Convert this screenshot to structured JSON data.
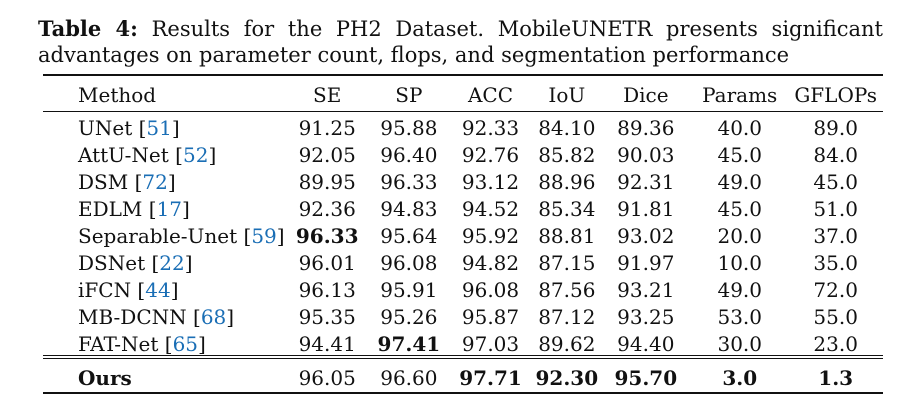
{
  "caption": {
    "label": "Table 4:",
    "text": "Results for the PH2 Dataset. MobileUNETR presents significant advantages on parameter count, flops, and segmentation performance"
  },
  "table": {
    "headers": [
      "Method",
      "SE",
      "SP",
      "ACC",
      "IoU",
      "Dice",
      "Params",
      "GFLOPs"
    ],
    "rows": [
      {
        "method": "UNet",
        "ref": "51",
        "values": [
          "91.25",
          "95.88",
          "92.33",
          "84.10",
          "89.36",
          "40.0",
          "89.0"
        ],
        "bold": []
      },
      {
        "method": "AttU-Net",
        "ref": "52",
        "values": [
          "92.05",
          "96.40",
          "92.76",
          "85.82",
          "90.03",
          "45.0",
          "84.0"
        ],
        "bold": []
      },
      {
        "method": "DSM",
        "ref": "72",
        "values": [
          "89.95",
          "96.33",
          "93.12",
          "88.96",
          "92.31",
          "49.0",
          "45.0"
        ],
        "bold": []
      },
      {
        "method": "EDLM",
        "ref": "17",
        "values": [
          "92.36",
          "94.83",
          "94.52",
          "85.34",
          "91.81",
          "45.0",
          "51.0"
        ],
        "bold": []
      },
      {
        "method": "Separable-Unet",
        "ref": "59",
        "values": [
          "96.33",
          "95.64",
          "95.92",
          "88.81",
          "93.02",
          "20.0",
          "37.0"
        ],
        "bold": [
          0
        ]
      },
      {
        "method": "DSNet",
        "ref": "22",
        "values": [
          "96.01",
          "96.08",
          "94.82",
          "87.15",
          "91.97",
          "10.0",
          "35.0"
        ],
        "bold": []
      },
      {
        "method": "iFCN",
        "ref": "44",
        "values": [
          "96.13",
          "95.91",
          "96.08",
          "87.56",
          "93.21",
          "49.0",
          "72.0"
        ],
        "bold": []
      },
      {
        "method": "MB-DCNN",
        "ref": "68",
        "values": [
          "95.35",
          "95.26",
          "95.87",
          "87.12",
          "93.25",
          "53.0",
          "55.0"
        ],
        "bold": []
      },
      {
        "method": "FAT-Net",
        "ref": "65",
        "values": [
          "94.41",
          "97.41",
          "97.03",
          "89.62",
          "94.40",
          "30.0",
          "23.0"
        ],
        "bold": [
          1
        ]
      }
    ],
    "ours": {
      "method": "Ours",
      "values": [
        "96.05",
        "96.60",
        "97.71",
        "92.30",
        "95.70",
        "3.0",
        "1.3"
      ],
      "bold": [
        2,
        3,
        4,
        5,
        6
      ]
    }
  }
}
